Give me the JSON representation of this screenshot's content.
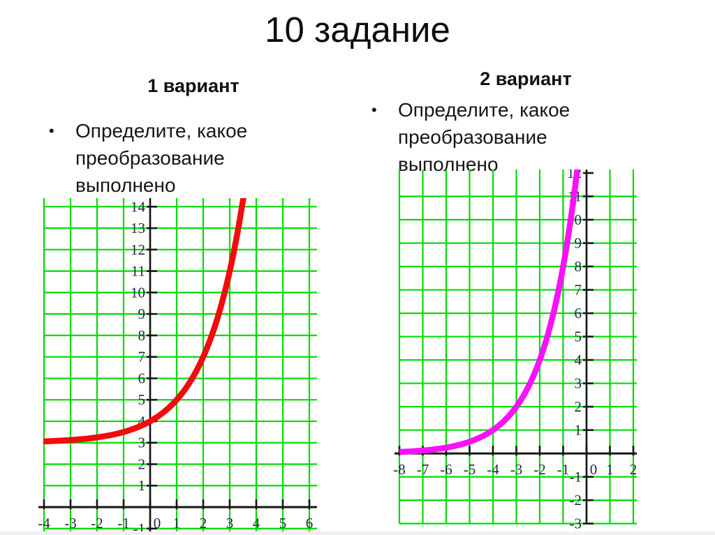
{
  "slide": {
    "title": "10 задание",
    "variant1": {
      "header": "1 вариант",
      "bullet": "•",
      "line1": "Определите, какое",
      "line2": "преобразование",
      "line3": "выполнено"
    },
    "variant2": {
      "header": "2 вариант",
      "bullet": "•",
      "line1": "Определите, какое",
      "line2": "преобразование",
      "line3": "выполнено"
    }
  },
  "chart_data": [
    {
      "type": "line",
      "title": "",
      "xlabel": "",
      "ylabel": "",
      "grid": true,
      "legend": false,
      "xlim": [
        -4.342,
        6.289
      ],
      "ylim": [
        -1.17,
        14.4
      ],
      "grid_xmin": -4.026,
      "grid_ymin": -1.17,
      "grid_x_lines": [
        -4,
        -3,
        -2,
        -1,
        0,
        1,
        2,
        3,
        4,
        5,
        6
      ],
      "grid_y_lines": [
        -1,
        0,
        1,
        2,
        3,
        4,
        5,
        6,
        7,
        8,
        9,
        10,
        11,
        12,
        13,
        14
      ],
      "x_ticks": [
        -4,
        -3,
        -2,
        -1,
        0,
        1,
        2,
        3,
        4,
        5,
        6
      ],
      "y_ticks": [
        -1,
        1,
        2,
        3,
        4,
        5,
        6,
        7,
        8,
        9,
        10,
        11,
        12,
        13,
        14
      ],
      "grid_color": "#00dc00",
      "axis_color": "#151515",
      "label_color": "#1e2746",
      "series": [
        {
          "name": "curve",
          "color": "#f30a0a",
          "curve": {
            "base": 2,
            "x_shift": 0,
            "y_shift": 3
          },
          "asymptote_y": 3,
          "points": [
            [
              -4,
              3.06
            ],
            [
              -3,
              3.13
            ],
            [
              -2,
              3.25
            ],
            [
              -1,
              3.5
            ],
            [
              0,
              4
            ],
            [
              1,
              5
            ],
            [
              2,
              7
            ],
            [
              3,
              11
            ],
            [
              3.5,
              14.3
            ]
          ]
        }
      ]
    },
    {
      "type": "line",
      "title": "",
      "xlabel": "",
      "ylabel": "",
      "grid": true,
      "legend": false,
      "xlim": [
        -8.358,
        2.149
      ],
      "ylim": [
        -3.37,
        12.15
      ],
      "grid_xmin": -8.0,
      "grid_ymin": -3.0,
      "grid_x_lines": [
        -8,
        -7,
        -6,
        -5,
        -4,
        -3,
        -2,
        -1,
        0,
        1,
        2
      ],
      "grid_y_lines": [
        -3,
        -2,
        -1,
        0,
        1,
        2,
        3,
        4,
        5,
        6,
        7,
        8,
        9,
        10,
        11
      ],
      "x_ticks": [
        -8,
        -7,
        -6,
        -5,
        -4,
        -3,
        -2,
        -1,
        0,
        1,
        2
      ],
      "y_ticks": [
        -3,
        -2,
        -1,
        1,
        2,
        3,
        4,
        5,
        6,
        7,
        8,
        9,
        10,
        11,
        12
      ],
      "grid_color": "#00dc00",
      "axis_color": "#151515",
      "label_color": "#1e2746",
      "series": [
        {
          "name": "curve",
          "color": "#f911f9",
          "curve": {
            "base": 2,
            "x_shift": -4,
            "y_shift": 0
          },
          "asymptote_y": 0,
          "points": [
            [
              -8,
              0.06
            ],
            [
              -7,
              0.13
            ],
            [
              -6,
              0.25
            ],
            [
              -5,
              0.5
            ],
            [
              -4,
              1
            ],
            [
              -3,
              2
            ],
            [
              -2,
              4
            ],
            [
              -1,
              8
            ],
            [
              -0.4,
              12.1
            ]
          ]
        }
      ]
    }
  ]
}
